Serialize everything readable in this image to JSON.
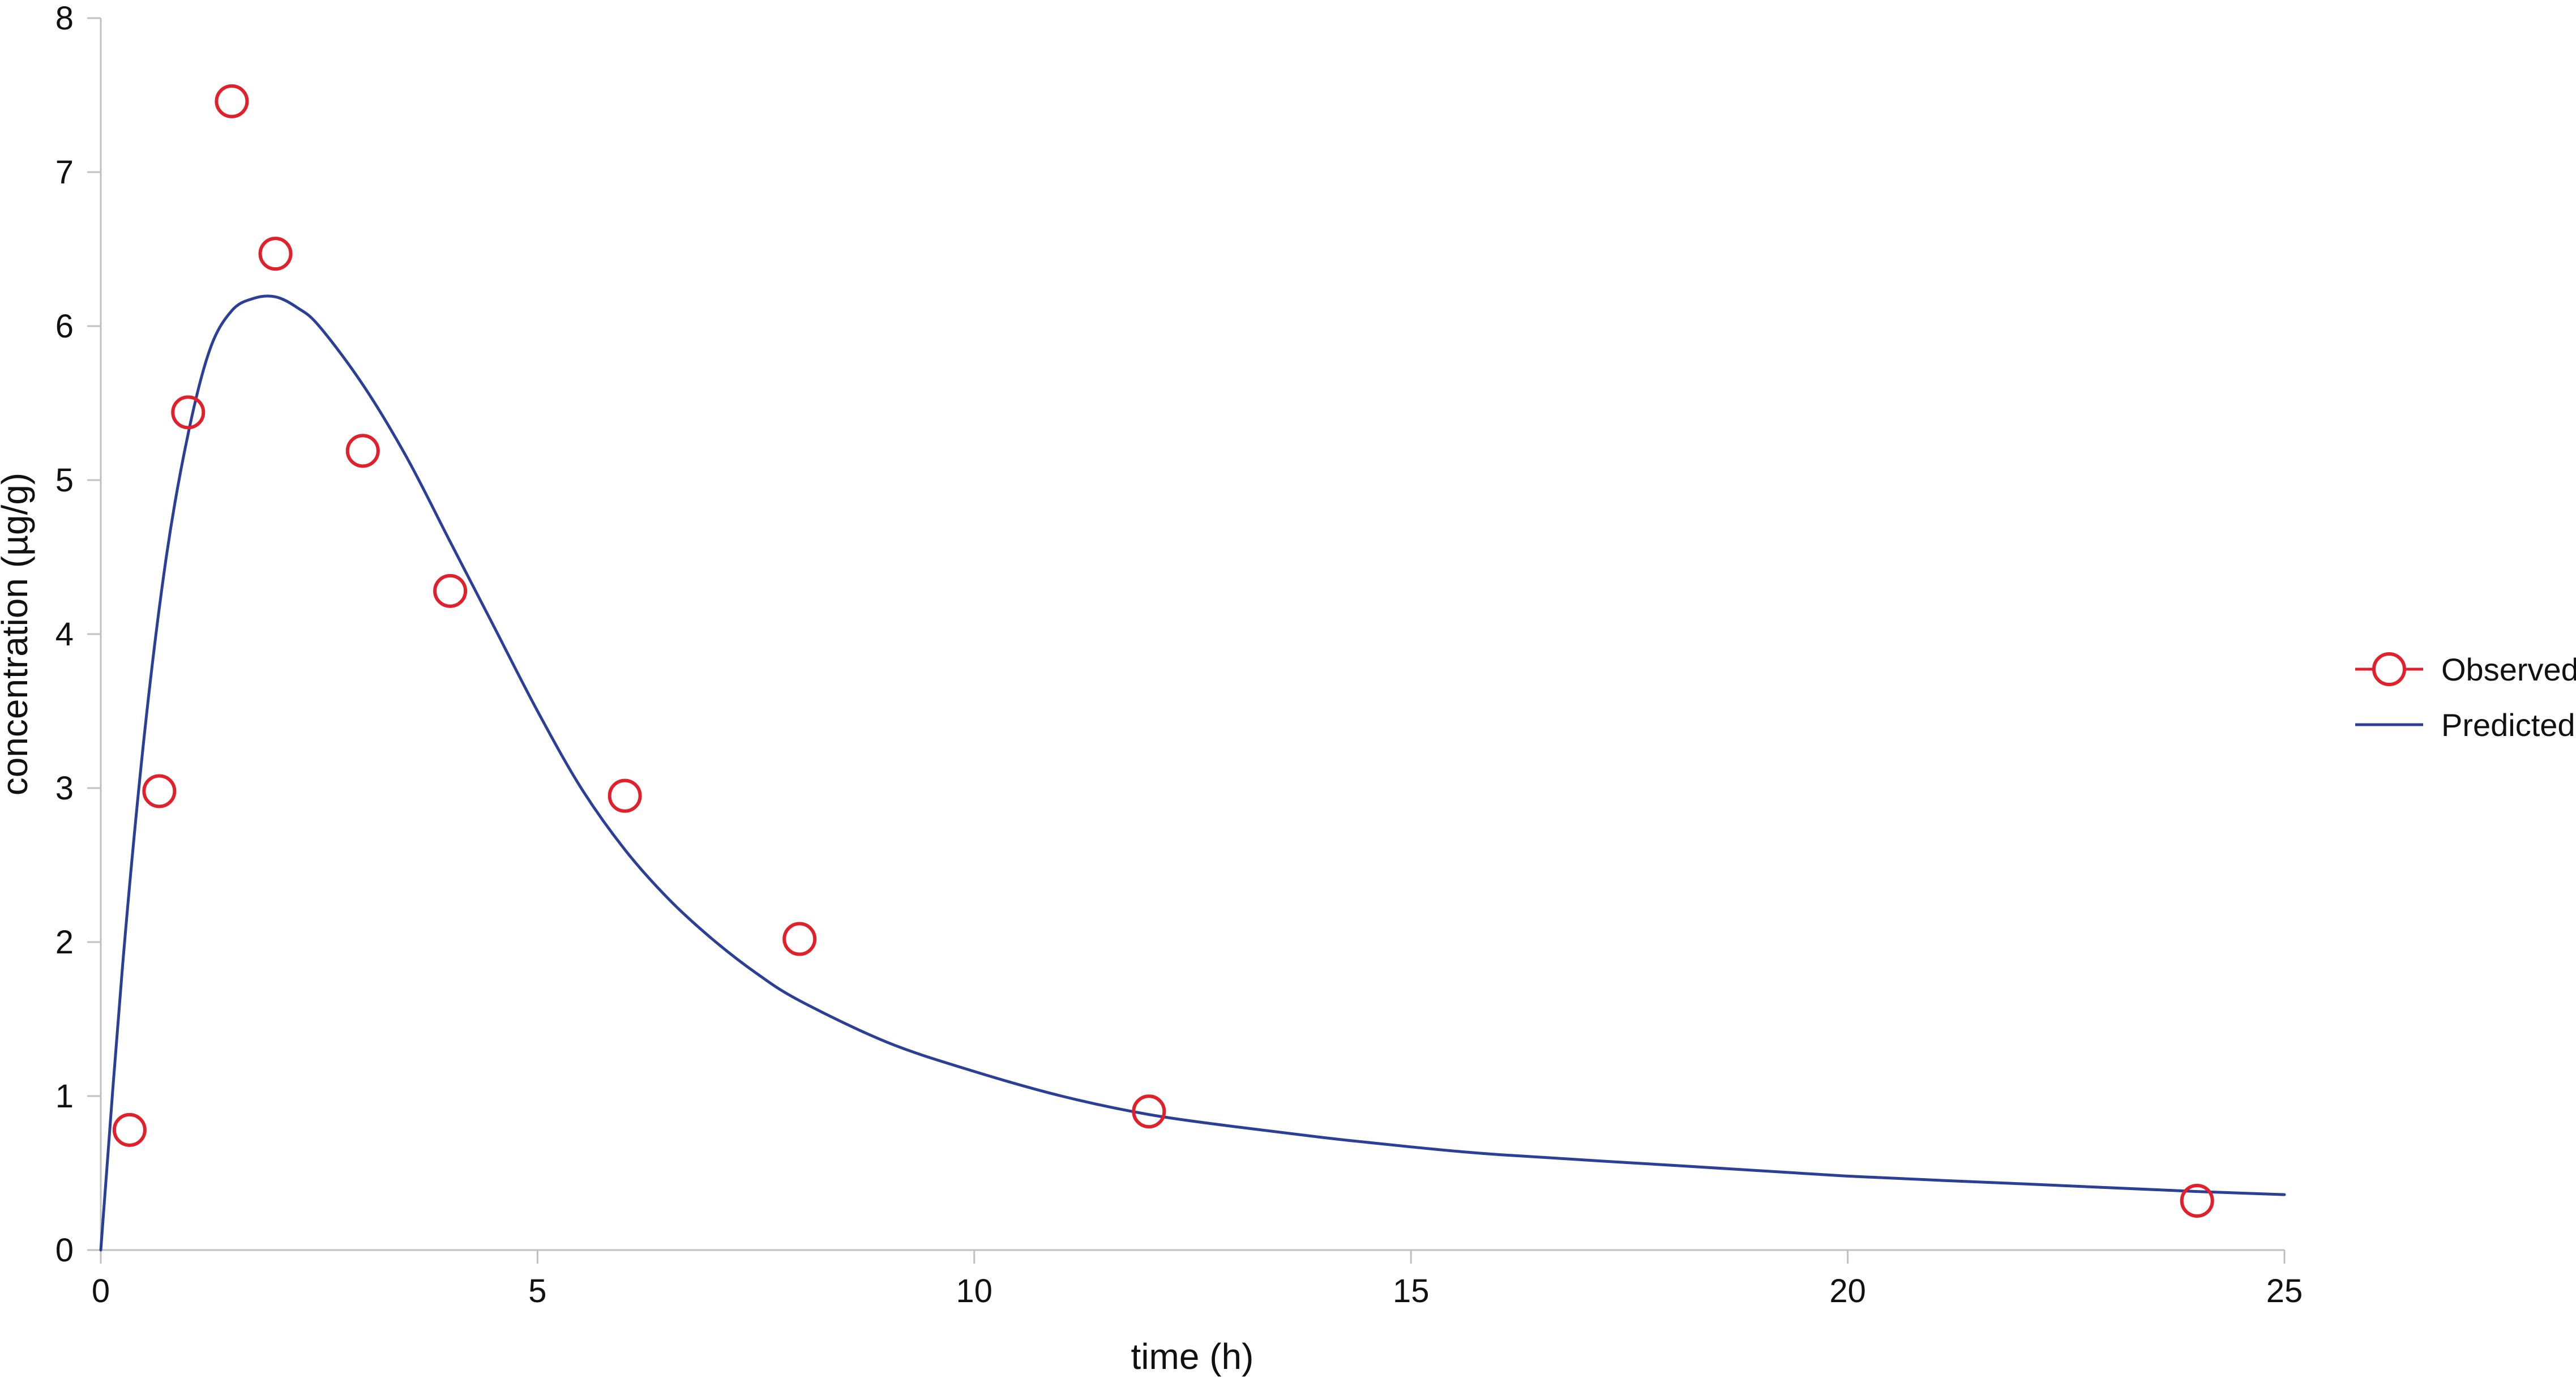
{
  "chart_data": {
    "type": "scatter",
    "title": "",
    "xlabel": "time (h)",
    "ylabel": "concentration (µg/g)",
    "xlim": [
      0,
      25
    ],
    "ylim": [
      0,
      8
    ],
    "x_ticks": [
      0,
      5,
      10,
      15,
      20,
      25
    ],
    "y_ticks": [
      0,
      1,
      2,
      3,
      4,
      5,
      6,
      7,
      8
    ],
    "x_tick_labels": [
      "0",
      "5",
      "10",
      "15",
      "20",
      "25"
    ],
    "y_tick_labels": [
      "0",
      "1",
      "2",
      "3",
      "4",
      "5",
      "6",
      "7",
      "8"
    ],
    "grid": false,
    "legend_position": "right",
    "series": [
      {
        "name": "Observed",
        "kind": "markers",
        "marker": "open-circle",
        "color": "#e0202a",
        "x": [
          0.33,
          0.67,
          1,
          1.5,
          2,
          3,
          4,
          6,
          8,
          12,
          24
        ],
        "y": [
          0.78,
          2.98,
          5.44,
          7.46,
          6.47,
          5.19,
          4.28,
          2.95,
          2.02,
          0.9,
          0.32
        ]
      },
      {
        "name": "Predicted",
        "kind": "line",
        "color": "#2b3f96",
        "x": [
          0,
          0.25,
          0.5,
          0.75,
          1,
          1.25,
          1.5,
          1.75,
          2,
          2.25,
          2.5,
          3,
          3.5,
          4,
          4.5,
          5,
          5.5,
          6,
          6.5,
          7,
          7.5,
          8,
          9,
          10,
          11,
          12,
          13,
          14,
          15,
          16,
          18,
          20,
          22,
          24,
          25
        ],
        "y": [
          0,
          1.85,
          3.35,
          4.5,
          5.3,
          5.85,
          6.1,
          6.18,
          6.19,
          6.12,
          6.0,
          5.62,
          5.15,
          4.6,
          4.05,
          3.5,
          3.0,
          2.6,
          2.28,
          2.02,
          1.8,
          1.62,
          1.35,
          1.16,
          1.0,
          0.88,
          0.8,
          0.73,
          0.67,
          0.62,
          0.55,
          0.48,
          0.43,
          0.38,
          0.36
        ]
      }
    ]
  }
}
